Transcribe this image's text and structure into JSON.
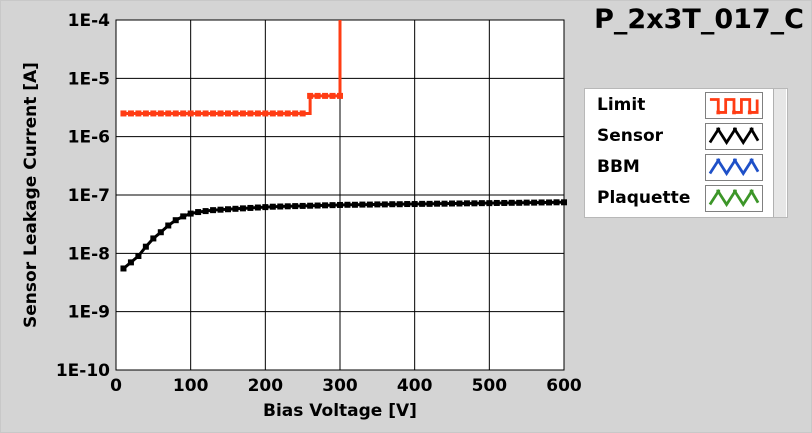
{
  "title": "P_2x3T_017_C",
  "legend": [
    {
      "name": "Limit",
      "color": "#ff3c14",
      "icon": "square-wave-line-icon"
    },
    {
      "name": "Sensor",
      "color": "#000000",
      "icon": "triangle-wave-line-icon"
    },
    {
      "name": "BBM",
      "color": "#1e50c8",
      "icon": "triangle-wave-line-icon"
    },
    {
      "name": "Plaquette",
      "color": "#3c9628",
      "icon": "triangle-wave-line-icon"
    }
  ],
  "chart_data": {
    "type": "line",
    "xlabel": "Bias Voltage [V]",
    "ylabel": "Sensor Leakage Current [A]",
    "xlim": [
      0,
      600
    ],
    "ylim": [
      1e-10,
      0.0001
    ],
    "yscale": "log",
    "grid": true,
    "legend_position": "right",
    "x_ticks": [
      0,
      100,
      200,
      300,
      400,
      500,
      600
    ],
    "y_ticks": [
      "1E-10",
      "1E-9",
      "1E-8",
      "1E-7",
      "1E-6",
      "1E-5",
      "1E-4"
    ],
    "series": [
      {
        "name": "Limit",
        "color": "#ff3c14",
        "x": [
          10,
          20,
          30,
          40,
          50,
          60,
          70,
          80,
          90,
          100,
          110,
          120,
          130,
          140,
          150,
          160,
          170,
          180,
          190,
          200,
          210,
          220,
          230,
          240,
          250,
          260,
          270,
          280,
          290,
          300,
          300
        ],
        "y": [
          2.5e-06,
          2.5e-06,
          2.5e-06,
          2.5e-06,
          2.5e-06,
          2.5e-06,
          2.5e-06,
          2.5e-06,
          2.5e-06,
          2.5e-06,
          2.5e-06,
          2.5e-06,
          2.5e-06,
          2.5e-06,
          2.5e-06,
          2.5e-06,
          2.5e-06,
          2.5e-06,
          2.5e-06,
          2.5e-06,
          2.5e-06,
          2.5e-06,
          2.5e-06,
          2.5e-06,
          2.5e-06,
          5e-06,
          5e-06,
          5e-06,
          5e-06,
          5e-06,
          0.0001
        ]
      },
      {
        "name": "Sensor",
        "color": "#000000",
        "x": [
          10,
          20,
          30,
          40,
          50,
          60,
          70,
          80,
          90,
          100,
          110,
          120,
          130,
          140,
          150,
          160,
          170,
          180,
          190,
          200,
          210,
          220,
          230,
          240,
          250,
          260,
          270,
          280,
          290,
          300,
          310,
          320,
          330,
          340,
          350,
          360,
          370,
          380,
          390,
          400,
          410,
          420,
          430,
          440,
          450,
          460,
          470,
          480,
          490,
          500,
          510,
          520,
          530,
          540,
          550,
          560,
          570,
          580,
          590,
          600
        ],
        "y": [
          5.5e-09,
          7e-09,
          9e-09,
          1.3e-08,
          1.8e-08,
          2.3e-08,
          3e-08,
          3.7e-08,
          4.3e-08,
          4.8e-08,
          5.1e-08,
          5.3e-08,
          5.5e-08,
          5.6e-08,
          5.7e-08,
          5.8e-08,
          5.9e-08,
          6e-08,
          6.1e-08,
          6.2e-08,
          6.3e-08,
          6.35e-08,
          6.4e-08,
          6.45e-08,
          6.5e-08,
          6.55e-08,
          6.6e-08,
          6.65e-08,
          6.7e-08,
          6.75e-08,
          6.8e-08,
          6.8e-08,
          6.85e-08,
          6.85e-08,
          6.9e-08,
          6.9e-08,
          6.95e-08,
          6.95e-08,
          7e-08,
          7e-08,
          7.05e-08,
          7.05e-08,
          7.1e-08,
          7.1e-08,
          7.15e-08,
          7.15e-08,
          7.2e-08,
          7.2e-08,
          7.25e-08,
          7.25e-08,
          7.3e-08,
          7.3e-08,
          7.35e-08,
          7.35e-08,
          7.4e-08,
          7.4e-08,
          7.45e-08,
          7.45e-08,
          7.5e-08,
          7.5e-08
        ]
      }
    ]
  }
}
